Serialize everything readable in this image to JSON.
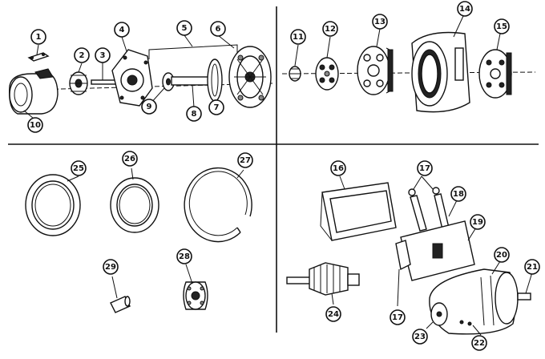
{
  "callouts": [
    {
      "id": "c1",
      "label": "1"
    },
    {
      "id": "c2",
      "label": "2"
    },
    {
      "id": "c3",
      "label": "3"
    },
    {
      "id": "c4",
      "label": "4"
    },
    {
      "id": "c5",
      "label": "5"
    },
    {
      "id": "c6",
      "label": "6"
    },
    {
      "id": "c7",
      "label": "7"
    },
    {
      "id": "c8",
      "label": "8"
    },
    {
      "id": "c9",
      "label": "9"
    },
    {
      "id": "c10",
      "label": "10"
    },
    {
      "id": "c11",
      "label": "11"
    },
    {
      "id": "c12",
      "label": "12"
    },
    {
      "id": "c13",
      "label": "13"
    },
    {
      "id": "c14",
      "label": "14"
    },
    {
      "id": "c15",
      "label": "15"
    },
    {
      "id": "c16",
      "label": "16"
    },
    {
      "id": "c17a",
      "label": "17"
    },
    {
      "id": "c17b",
      "label": "17"
    },
    {
      "id": "c18",
      "label": "18"
    },
    {
      "id": "c19",
      "label": "19"
    },
    {
      "id": "c20",
      "label": "20"
    },
    {
      "id": "c21",
      "label": "21"
    },
    {
      "id": "c22",
      "label": "22"
    },
    {
      "id": "c23",
      "label": "23"
    },
    {
      "id": "c24",
      "label": "24"
    },
    {
      "id": "c25",
      "label": "25"
    },
    {
      "id": "c26",
      "label": "26"
    },
    {
      "id": "c27",
      "label": "27"
    },
    {
      "id": "c28",
      "label": "28"
    },
    {
      "id": "c29",
      "label": "29"
    }
  ]
}
